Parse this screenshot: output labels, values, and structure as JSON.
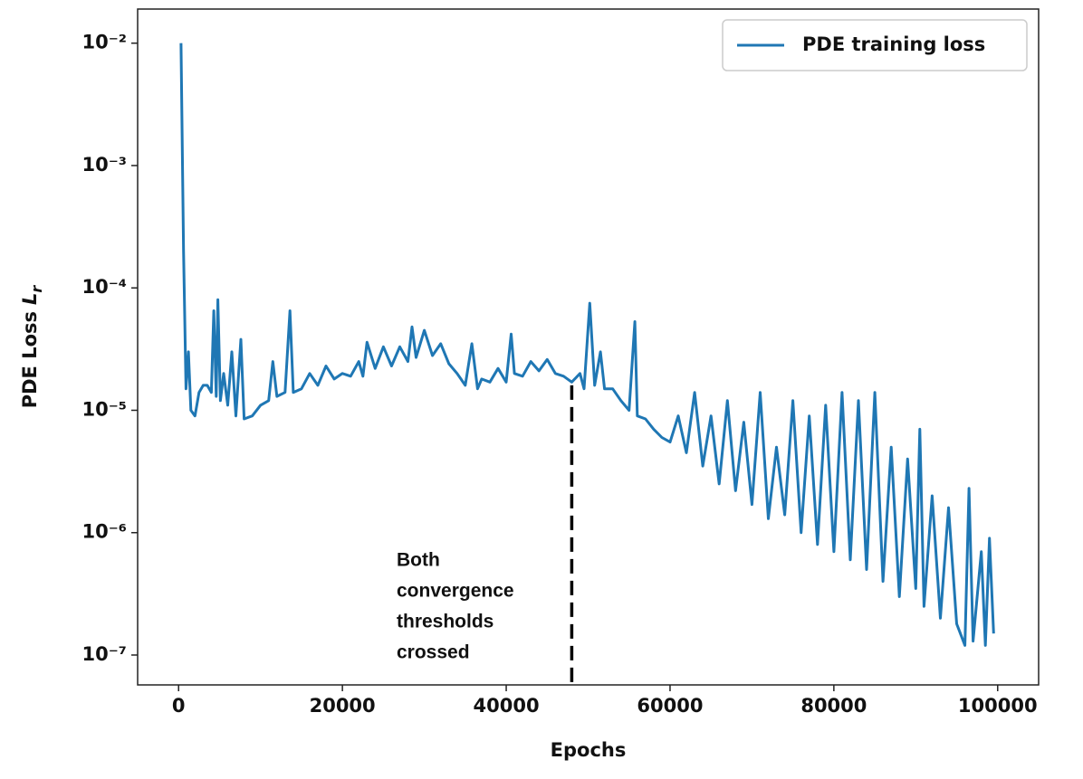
{
  "chart_data": {
    "type": "line",
    "x_label": "Epochs",
    "y_label": {
      "text": "PDE Loss",
      "symbol": "L",
      "subscript": "r"
    },
    "x": [
      300,
      600,
      900,
      1200,
      1500,
      2000,
      2500,
      3000,
      3500,
      4000,
      4300,
      4600,
      4800,
      5100,
      5500,
      6000,
      6500,
      7000,
      7600,
      8000,
      9000,
      10000,
      11000,
      11500,
      12000,
      13000,
      13600,
      14000,
      15000,
      16000,
      17000,
      18000,
      19000,
      20000,
      21000,
      22000,
      22500,
      23000,
      24000,
      25000,
      26000,
      27000,
      28000,
      28500,
      29000,
      30000,
      31000,
      32000,
      33000,
      34000,
      35000,
      35800,
      36500,
      37000,
      38000,
      39000,
      40000,
      40600,
      41000,
      42000,
      43000,
      44000,
      45000,
      46000,
      47000,
      48000,
      49000,
      49500,
      50200,
      50800,
      51500,
      52000,
      53000,
      54000,
      55000,
      55700,
      56000,
      57000,
      58000,
      59000,
      60000,
      61000,
      62000,
      63000,
      64000,
      65000,
      66000,
      67000,
      68000,
      69000,
      70000,
      71000,
      72000,
      73000,
      74000,
      75000,
      76000,
      77000,
      78000,
      79000,
      80000,
      81000,
      82000,
      83000,
      84000,
      85000,
      86000,
      87000,
      88000,
      89000,
      90000,
      90500,
      91000,
      92000,
      93000,
      94000,
      95000,
      96000,
      96500,
      97000,
      98000,
      98500,
      99000,
      99500
    ],
    "series": [
      {
        "name": "PDE training loss",
        "color": "#1f77b4",
        "values": [
          0.01,
          0.0002,
          1.5e-05,
          3e-05,
          1e-05,
          9e-06,
          1.4e-05,
          1.6e-05,
          1.6e-05,
          1.4e-05,
          6.5e-05,
          1.3e-05,
          8e-05,
          1.2e-05,
          2e-05,
          1.1e-05,
          3e-05,
          9e-06,
          3.8e-05,
          8.5e-06,
          9e-06,
          1.1e-05,
          1.2e-05,
          2.5e-05,
          1.3e-05,
          1.4e-05,
          6.5e-05,
          1.4e-05,
          1.5e-05,
          2e-05,
          1.6e-05,
          2.3e-05,
          1.8e-05,
          2e-05,
          1.9e-05,
          2.5e-05,
          1.9e-05,
          3.6e-05,
          2.2e-05,
          3.3e-05,
          2.3e-05,
          3.3e-05,
          2.5e-05,
          4.8e-05,
          2.7e-05,
          4.5e-05,
          2.8e-05,
          3.5e-05,
          2.4e-05,
          2e-05,
          1.6e-05,
          3.5e-05,
          1.5e-05,
          1.8e-05,
          1.7e-05,
          2.2e-05,
          1.7e-05,
          4.2e-05,
          2e-05,
          1.9e-05,
          2.5e-05,
          2.1e-05,
          2.6e-05,
          2e-05,
          1.9e-05,
          1.7e-05,
          2e-05,
          1.5e-05,
          7.5e-05,
          1.6e-05,
          3e-05,
          1.5e-05,
          1.5e-05,
          1.2e-05,
          1e-05,
          5.3e-05,
          9e-06,
          8.5e-06,
          7e-06,
          6e-06,
          5.5e-06,
          9e-06,
          4.5e-06,
          1.4e-05,
          3.5e-06,
          9e-06,
          2.5e-06,
          1.2e-05,
          2.2e-06,
          8e-06,
          1.7e-06,
          1.4e-05,
          1.3e-06,
          5e-06,
          1.4e-06,
          1.2e-05,
          1e-06,
          9e-06,
          8e-07,
          1.1e-05,
          7e-07,
          1.4e-05,
          6e-07,
          1.2e-05,
          5e-07,
          1.4e-05,
          4e-07,
          5e-06,
          3e-07,
          4e-06,
          3.5e-07,
          7e-06,
          2.5e-07,
          2e-06,
          2e-07,
          1.6e-06,
          1.8e-07,
          1.2e-07,
          2.3e-06,
          1.3e-07,
          7e-07,
          1.2e-07,
          9e-07,
          1.5e-07
        ]
      }
    ],
    "xlim": [
      -5000,
      105000
    ],
    "ylim": [
      5.7e-08,
      0.019
    ],
    "xticks": [
      0,
      20000,
      40000,
      60000,
      80000,
      100000
    ],
    "yticks": [
      {
        "value": 1e-07,
        "label": "10⁻⁷"
      },
      {
        "value": 1e-06,
        "label": "10⁻⁶"
      },
      {
        "value": 1e-05,
        "label": "10⁻⁵"
      },
      {
        "value": 0.0001,
        "label": "10⁻⁴"
      },
      {
        "value": 0.001,
        "label": "10⁻³"
      },
      {
        "value": 0.01,
        "label": "10⁻²"
      }
    ],
    "log_y": true,
    "legend": "upper right",
    "annotation": {
      "lines": [
        "Both",
        "convergence",
        "thresholds",
        "crossed"
      ],
      "x": 48000,
      "y_end": 1.6e-05
    }
  }
}
